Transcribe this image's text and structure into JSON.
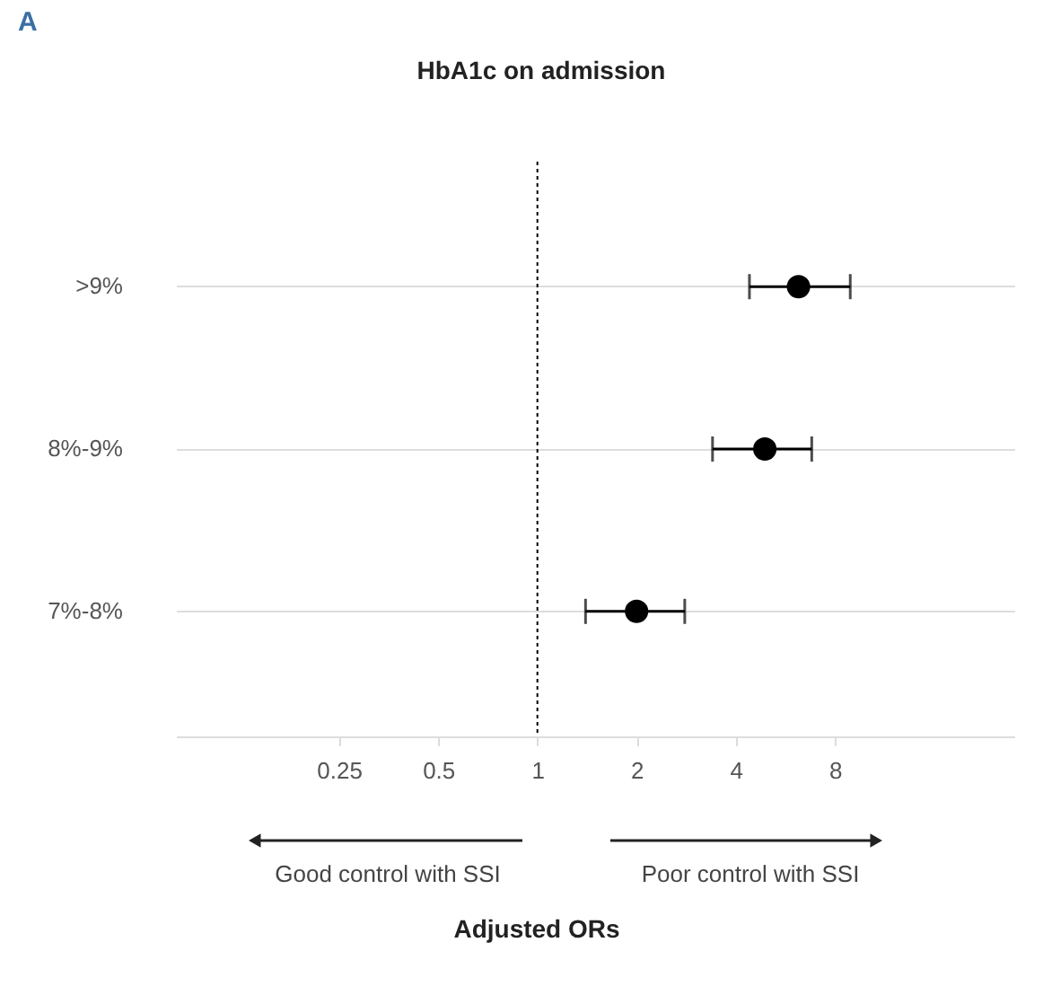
{
  "chart_data": {
    "type": "scatter",
    "title": "HbA1c on admission",
    "categories": [
      ">9%",
      "8%-9%",
      "7%-8%"
    ],
    "series": [
      {
        "color": "#000000",
        "values": [
          6.2,
          4.9,
          2.0
        ],
        "errors": [
          [
            4.4,
            8.9
          ],
          [
            3.4,
            6.8
          ],
          [
            1.4,
            2.8
          ]
        ]
      }
    ],
    "orientation": "horizontal",
    "marker": "circle",
    "log": "x",
    "xlim": [
      0.08,
      28
    ],
    "xticks": [
      0.25,
      0.5,
      1,
      2,
      4,
      8
    ],
    "grid": "y",
    "ref_lines": [
      {
        "axis": "x",
        "value": 1,
        "line_style": "dotted",
        "color": "#000000"
      }
    ],
    "annotations": [
      "A",
      "Good control with SSI",
      "Poor control with SSI",
      "Adjusted ORs"
    ]
  }
}
